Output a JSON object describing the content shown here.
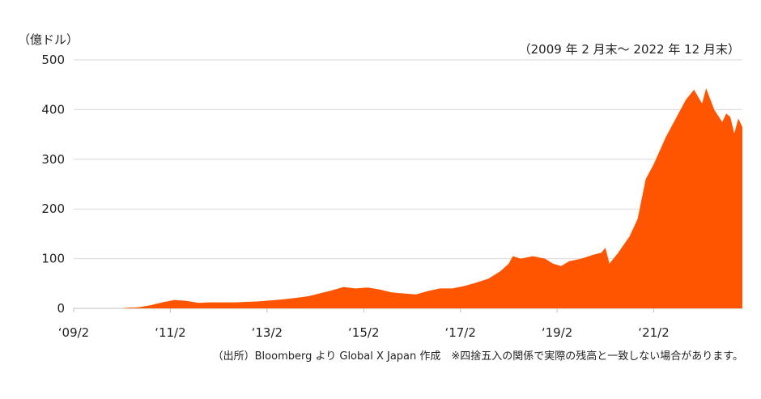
{
  "unit_label": "（億ドル）",
  "period_label": "（2009 年 2 月末～ 2022 年 12 月末）",
  "source_label": "（出所）Bloomberg より Global X Japan 作成　※四捨五入の関係で実際の残高と一致しない場合があります。",
  "colors": {
    "area": "#ff5500",
    "grid": "#d9d9d9",
    "axis": "#bfbfbf"
  },
  "chart_data": {
    "type": "area",
    "title": "",
    "xlabel": "",
    "ylabel": "（億ドル）",
    "ylim": [
      0,
      500
    ],
    "yticks": [
      0,
      100,
      200,
      300,
      400,
      500
    ],
    "xlim": [
      "2009-02",
      "2022-12"
    ],
    "xticks": [
      {
        "date": "2009-02",
        "label": "‘09/2"
      },
      {
        "date": "2011-02",
        "label": "‘11/2"
      },
      {
        "date": "2013-02",
        "label": "‘13/2"
      },
      {
        "date": "2015-02",
        "label": "‘15/2"
      },
      {
        "date": "2017-02",
        "label": "‘17/2"
      },
      {
        "date": "2019-02",
        "label": "‘19/2"
      },
      {
        "date": "2021-02",
        "label": "‘21/2"
      }
    ],
    "grid": true,
    "series": [
      {
        "values": [
          [
            "2009-02",
            0
          ],
          [
            "2010-02",
            0
          ],
          [
            "2010-03",
            1
          ],
          [
            "2010-06",
            2
          ],
          [
            "2010-09",
            6
          ],
          [
            "2010-12",
            12
          ],
          [
            "2011-03",
            17
          ],
          [
            "2011-06",
            15
          ],
          [
            "2011-09",
            11
          ],
          [
            "2011-12",
            12
          ],
          [
            "2012-06",
            12
          ],
          [
            "2012-12",
            14
          ],
          [
            "2013-06",
            18
          ],
          [
            "2013-09",
            21
          ],
          [
            "2013-12",
            24
          ],
          [
            "2014-03",
            30
          ],
          [
            "2014-06",
            36
          ],
          [
            "2014-09",
            43
          ],
          [
            "2014-12",
            40
          ],
          [
            "2015-03",
            42
          ],
          [
            "2015-06",
            38
          ],
          [
            "2015-09",
            32
          ],
          [
            "2015-12",
            30
          ],
          [
            "2016-03",
            28
          ],
          [
            "2016-06",
            35
          ],
          [
            "2016-09",
            40
          ],
          [
            "2016-12",
            40
          ],
          [
            "2017-03",
            45
          ],
          [
            "2017-06",
            52
          ],
          [
            "2017-09",
            60
          ],
          [
            "2017-12",
            75
          ],
          [
            "2018-02",
            90
          ],
          [
            "2018-03",
            105
          ],
          [
            "2018-05",
            100
          ],
          [
            "2018-08",
            105
          ],
          [
            "2018-11",
            100
          ],
          [
            "2019-01",
            90
          ],
          [
            "2019-03",
            85
          ],
          [
            "2019-05",
            95
          ],
          [
            "2019-08",
            100
          ],
          [
            "2019-11",
            108
          ],
          [
            "2020-01",
            112
          ],
          [
            "2020-02",
            122
          ],
          [
            "2020-03",
            90
          ],
          [
            "2020-05",
            110
          ],
          [
            "2020-08",
            145
          ],
          [
            "2020-10",
            180
          ],
          [
            "2020-12",
            260
          ],
          [
            "2021-02",
            290
          ],
          [
            "2021-05",
            345
          ],
          [
            "2021-08",
            390
          ],
          [
            "2021-10",
            420
          ],
          [
            "2021-12",
            440
          ],
          [
            "2022-02",
            412
          ],
          [
            "2022-03",
            443
          ],
          [
            "2022-05",
            400
          ],
          [
            "2022-07",
            375
          ],
          [
            "2022-08",
            392
          ],
          [
            "2022-09",
            385
          ],
          [
            "2022-10",
            352
          ],
          [
            "2022-11",
            382
          ],
          [
            "2022-12",
            365
          ]
        ]
      }
    ]
  }
}
